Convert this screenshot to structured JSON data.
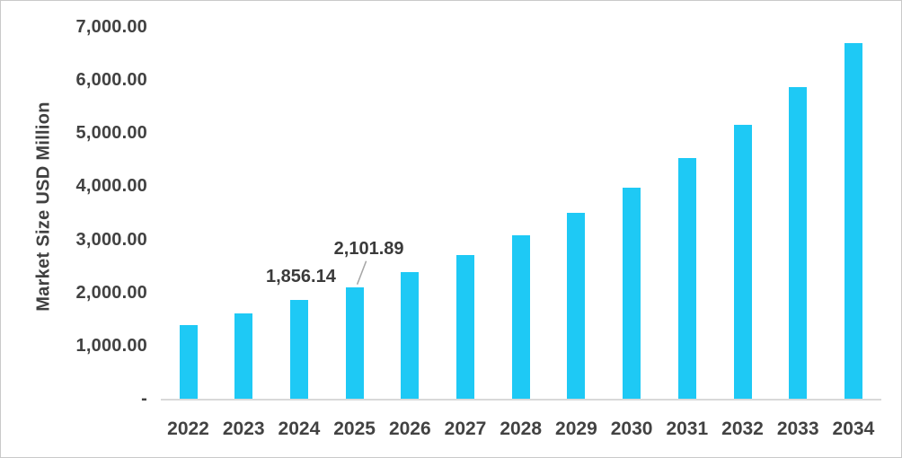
{
  "chart_data": {
    "type": "bar",
    "title": "",
    "xlabel": "",
    "ylabel": "Market Size USD Million",
    "categories": [
      "2022",
      "2023",
      "2024",
      "2025",
      "2026",
      "2027",
      "2028",
      "2029",
      "2030",
      "2031",
      "2032",
      "2033",
      "2034"
    ],
    "values": [
      1390,
      1610,
      1856.14,
      2101.89,
      2390,
      2710,
      3080,
      3500,
      3980,
      4540,
      5160,
      5870,
      6700
    ],
    "ylim": [
      0,
      7000
    ],
    "y_tick_interval": 1000,
    "y_tick_labels": [
      "-",
      "1,000.00",
      "2,000.00",
      "3,000.00",
      "4,000.00",
      "5,000.00",
      "6,000.00",
      "7,000.00"
    ],
    "grid": false,
    "legend": "none",
    "bar_color": "#1EC9F5",
    "axis_line_color": "#D9D9D9",
    "text_color": "#404040",
    "leader_line_color": "#A6A6A6",
    "data_labels": [
      {
        "category": "2024",
        "text": "1,856.14",
        "leader_line": false
      },
      {
        "category": "2025",
        "text": "2,101.89",
        "leader_line": true
      }
    ]
  }
}
